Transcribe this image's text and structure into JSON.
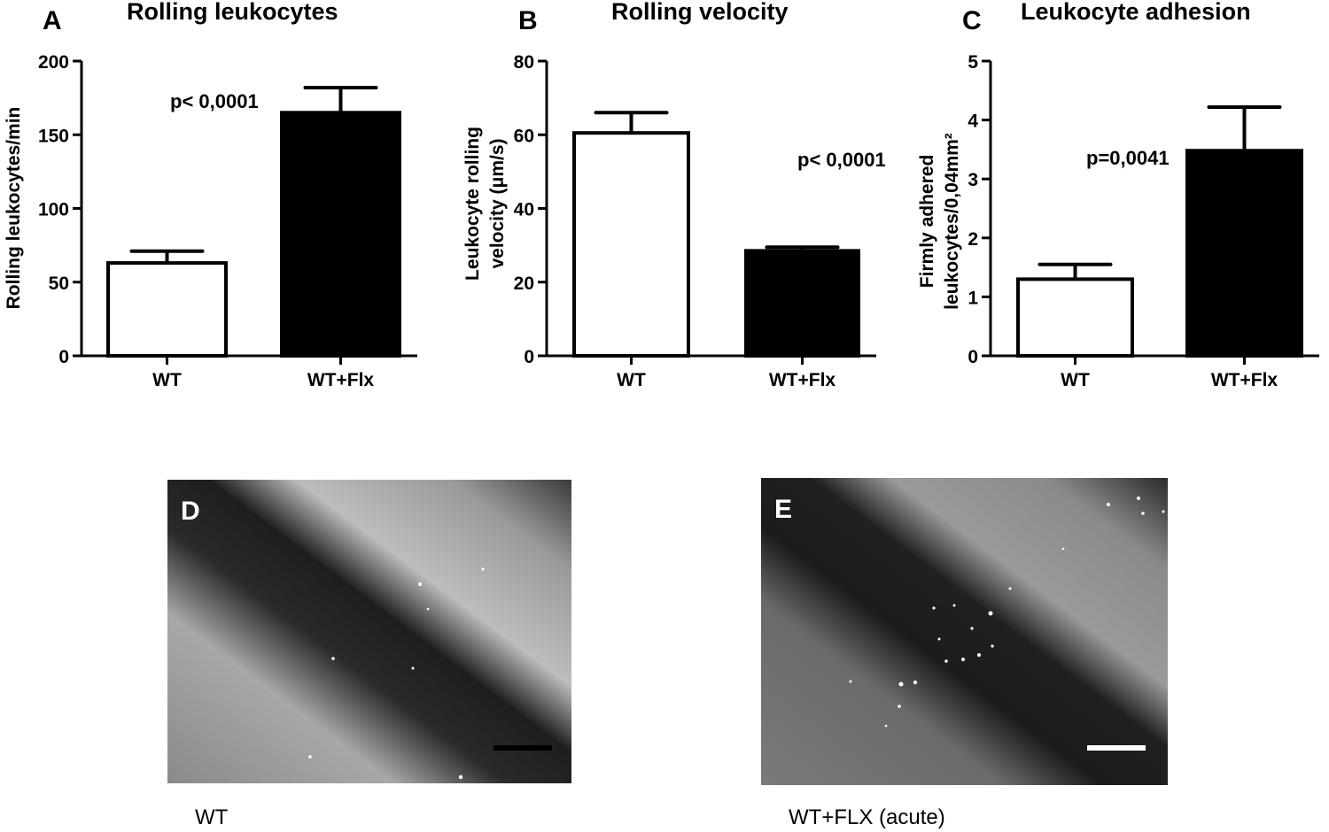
{
  "chart_data": [
    {
      "type": "bar",
      "panel": "A",
      "title": "Rolling leukocytes",
      "xlabel": "",
      "ylabel": "Rolling leukocytes/min",
      "categories": [
        "WT",
        "WT+Flx"
      ],
      "values": [
        63,
        165
      ],
      "error_upper": [
        71,
        182
      ],
      "bar_colors": [
        "#ffffff",
        "#000000"
      ],
      "ylim": [
        0,
        200
      ],
      "yticks": [
        0,
        50,
        100,
        150,
        200
      ],
      "annotation": "p< 0,0001",
      "grid": false
    },
    {
      "type": "bar",
      "panel": "B",
      "title": "Rolling velocity",
      "xlabel": "",
      "ylabel": [
        "Leukocyte rolling",
        "velocity (μm/s)"
      ],
      "categories": [
        "WT",
        "WT+Flx"
      ],
      "values": [
        60.5,
        28.5
      ],
      "error_upper": [
        66,
        29.5
      ],
      "bar_colors": [
        "#ffffff",
        "#000000"
      ],
      "ylim": [
        0,
        80
      ],
      "yticks": [
        0,
        20,
        40,
        60,
        80
      ],
      "annotation": "p< 0,0001",
      "grid": false
    },
    {
      "type": "bar",
      "panel": "C",
      "title": "Leukocyte adhesion",
      "xlabel": "",
      "ylabel": [
        "Firmly adhered",
        "leukocytes/0,04mm²"
      ],
      "categories": [
        "WT",
        "WT+Flx"
      ],
      "values": [
        1.3,
        3.48
      ],
      "error_upper": [
        1.55,
        4.22
      ],
      "bar_colors": [
        "#ffffff",
        "#000000"
      ],
      "ylim": [
        0,
        5
      ],
      "yticks": [
        0,
        1,
        2,
        3,
        4,
        5
      ],
      "annotation": "p=0,0041",
      "grid": false
    }
  ],
  "images": [
    {
      "panel": "D",
      "caption": "WT",
      "scale_bar_color": "#000000"
    },
    {
      "panel": "E",
      "caption": "WT+FLX (acute)",
      "scale_bar_color": "#ffffff"
    }
  ]
}
